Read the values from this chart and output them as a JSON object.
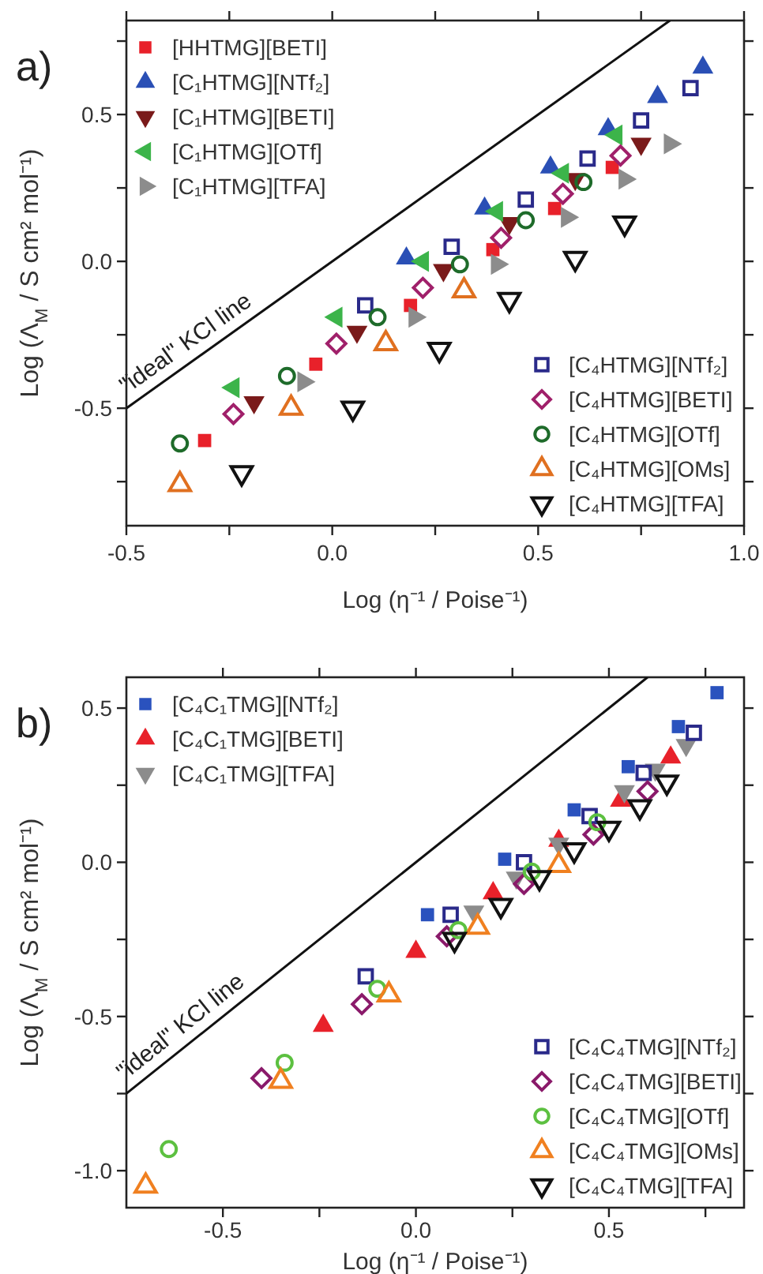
{
  "chart_data": [
    {
      "type": "scatter",
      "title": "a)",
      "xlabel": "Log (η⁻¹ / Poise⁻¹)",
      "ylabel": "Log (Λ$_{M}$ / S cm² mol⁻¹)",
      "xlim": [
        -0.5,
        1.0
      ],
      "ylim": [
        -0.9,
        0.82
      ],
      "xticks": [
        {
          "value": -0.5,
          "label": "-0.5"
        },
        {
          "value": -0.25,
          "label": null
        },
        {
          "value": 0,
          "label": "0.0"
        },
        {
          "value": 0.25,
          "label": null
        },
        {
          "value": 0.5,
          "label": "0.5"
        },
        {
          "value": 0.75,
          "label": null
        },
        {
          "value": 1.0,
          "label": "1.0"
        }
      ],
      "yticks": [
        {
          "value": -0.75,
          "label": null
        },
        {
          "value": -0.5,
          "label": "-0.5"
        },
        {
          "value": -0.25,
          "label": null
        },
        {
          "value": 0,
          "label": "0.0"
        },
        {
          "value": 0.25,
          "label": null
        },
        {
          "value": 0.5,
          "label": "0.5"
        },
        {
          "value": 0.75,
          "label": null
        }
      ],
      "legend": [
        "top left",
        "bottom right"
      ],
      "grid": false,
      "annotations": [
        {
          "text": "\"ideal\" KCl line",
          "x": -0.33,
          "y": -0.33
        }
      ],
      "series": [
        {
          "type": "line",
          "color": "#111111",
          "x": [
            -0.5,
            0.82
          ],
          "values": [
            -0.5,
            0.82
          ],
          "line_style": "solid"
        },
        {
          "name": "[HHTMG][BETI]",
          "color": "#e8212a",
          "marker": "square",
          "x": [
            -0.31,
            -0.04,
            0.19,
            0.39,
            0.54,
            0.68
          ],
          "values": [
            -0.61,
            -0.35,
            -0.15,
            0.04,
            0.18,
            0.32
          ]
        },
        {
          "name": "[C₁HTMG][NTf₂]",
          "color": "#2a4fb5",
          "marker": "triangle",
          "x": [
            0.18,
            0.37,
            0.53,
            0.67,
            0.79,
            0.9
          ],
          "values": [
            0.01,
            0.18,
            0.32,
            0.45,
            0.56,
            0.66
          ]
        },
        {
          "name": "[C₁HTMG][BETI]",
          "color": "#7a1a1a",
          "marker": "triangle-down",
          "x": [
            -0.19,
            0.06,
            0.27,
            0.43,
            0.59,
            0.75
          ],
          "values": [
            -0.48,
            -0.24,
            -0.03,
            0.13,
            0.28,
            0.4
          ]
        },
        {
          "name": "[C₁HTMG][OTf]",
          "color": "#3cb44a",
          "marker": "triangle-left",
          "x": [
            -0.24,
            0.01,
            0.22,
            0.4,
            0.56,
            0.69
          ],
          "values": [
            -0.43,
            -0.19,
            0.0,
            0.17,
            0.3,
            0.43
          ]
        },
        {
          "name": "[C₁HTMG][TFA]",
          "color": "#8c8c8c",
          "marker": "triangle-right",
          "x": [
            -0.07,
            0.2,
            0.4,
            0.57,
            0.71,
            0.82
          ],
          "values": [
            -0.41,
            -0.19,
            -0.01,
            0.15,
            0.28,
            0.4
          ]
        },
        {
          "name": "[C₄HTMG][NTf₂]",
          "color": "#2a2a8a",
          "marker": "square-open",
          "x": [
            0.08,
            0.29,
            0.47,
            0.62,
            0.75,
            0.87
          ],
          "values": [
            -0.15,
            0.05,
            0.21,
            0.35,
            0.48,
            0.59
          ]
        },
        {
          "name": "[C₄HTMG][BETI]",
          "color": "#a0206a",
          "marker": "diamond-open",
          "x": [
            -0.24,
            0.01,
            0.22,
            0.41,
            0.56,
            0.7
          ],
          "values": [
            -0.52,
            -0.28,
            -0.09,
            0.08,
            0.23,
            0.36
          ]
        },
        {
          "name": "[C₄HTMG][OTf]",
          "color": "#1e6b2a",
          "marker": "circle-open",
          "x": [
            -0.37,
            -0.11,
            0.11,
            0.31,
            0.47,
            0.61
          ],
          "values": [
            -0.62,
            -0.39,
            -0.19,
            -0.01,
            0.14,
            0.27
          ]
        },
        {
          "name": "[C₄HTMG][OMs]",
          "color": "#e07020",
          "marker": "triangle-open",
          "x": [
            -0.37,
            -0.1,
            0.13,
            0.32
          ],
          "values": [
            -0.76,
            -0.5,
            -0.28,
            -0.1
          ]
        },
        {
          "name": "[C₄HTMG][TFA]",
          "color": "#111111",
          "marker": "triangle-down-open",
          "x": [
            -0.22,
            0.05,
            0.26,
            0.43,
            0.59,
            0.71
          ],
          "values": [
            -0.72,
            -0.5,
            -0.3,
            -0.13,
            0.01,
            0.13
          ]
        }
      ]
    },
    {
      "type": "scatter",
      "title": "b)",
      "xlabel": "Log (η⁻¹ / Poise⁻¹)",
      "ylabel": "Log (Λ$_{M}$ / S cm² mol⁻¹)",
      "xlim": [
        -0.75,
        0.85
      ],
      "ylim": [
        -1.12,
        0.6
      ],
      "xticks": [
        {
          "value": -0.5,
          "label": "-0.5"
        },
        {
          "value": -0.25,
          "label": null
        },
        {
          "value": 0,
          "label": "0.0"
        },
        {
          "value": 0.25,
          "label": null
        },
        {
          "value": 0.5,
          "label": "0.5"
        },
        {
          "value": 0.75,
          "label": null
        }
      ],
      "yticks": [
        {
          "value": -1.0,
          "label": "-1.0"
        },
        {
          "value": -0.75,
          "label": null
        },
        {
          "value": -0.5,
          "label": "-0.5"
        },
        {
          "value": -0.25,
          "label": null
        },
        {
          "value": 0,
          "label": "0.0"
        },
        {
          "value": 0.25,
          "label": null
        },
        {
          "value": 0.5,
          "label": "0.5"
        }
      ],
      "legend": [
        "top left",
        "bottom right"
      ],
      "grid": false,
      "annotations": [
        {
          "text": "\"ideal\" KCl line",
          "x": -0.58,
          "y": -0.58
        }
      ],
      "series": [
        {
          "type": "line",
          "color": "#111111",
          "x": [
            -0.75,
            0.6
          ],
          "values": [
            -0.75,
            0.6
          ],
          "line_style": "solid"
        },
        {
          "name": "[C₄C₁TMG][NTf₂]",
          "color": "#2a52be",
          "marker": "square",
          "x": [
            0.03,
            0.23,
            0.41,
            0.55,
            0.68,
            0.78
          ],
          "values": [
            -0.17,
            0.01,
            0.17,
            0.31,
            0.44,
            0.55
          ]
        },
        {
          "name": "[C₄C₁TMG][BETI]",
          "color": "#e8212a",
          "marker": "triangle",
          "x": [
            -0.24,
            0.0,
            0.2,
            0.37,
            0.53,
            0.66
          ],
          "values": [
            -0.53,
            -0.29,
            -0.1,
            0.07,
            0.2,
            0.34
          ]
        },
        {
          "name": "[C₄C₁TMG][TFA]",
          "color": "#8c8c8c",
          "marker": "triangle-down",
          "x": [
            0.15,
            0.26,
            0.37,
            0.54,
            0.62,
            0.7
          ],
          "values": [
            -0.16,
            -0.05,
            0.06,
            0.23,
            0.3,
            0.38
          ]
        },
        {
          "name": "[C₄C₄TMG][NTf₂]",
          "color": "#2a2a8a",
          "marker": "square-open",
          "x": [
            -0.13,
            0.09,
            0.28,
            0.45,
            0.59,
            0.72
          ],
          "values": [
            -0.37,
            -0.17,
            0.0,
            0.15,
            0.29,
            0.42
          ]
        },
        {
          "name": "[C₄C₄TMG][BETI]",
          "color": "#8a1a6a",
          "marker": "diamond-open",
          "x": [
            -0.4,
            -0.14,
            0.08,
            0.28,
            0.46,
            0.6
          ],
          "values": [
            -0.7,
            -0.46,
            -0.24,
            -0.07,
            0.09,
            0.23
          ]
        },
        {
          "name": "[C₄C₄TMG][OTf]",
          "color": "#5cc040",
          "marker": "circle-open",
          "x": [
            -0.64,
            -0.34,
            -0.1,
            0.11,
            0.3,
            0.47
          ],
          "values": [
            -0.93,
            -0.65,
            -0.41,
            -0.22,
            -0.03,
            0.13
          ]
        },
        {
          "name": "[C₄C₄TMG][OMs]",
          "color": "#f08020",
          "marker": "triangle-open",
          "x": [
            -0.7,
            -0.35,
            -0.07,
            0.16,
            0.37
          ],
          "values": [
            -1.05,
            -0.71,
            -0.43,
            -0.21,
            -0.01
          ]
        },
        {
          "name": "[C₄C₄TMG][TFA]",
          "color": "#111111",
          "marker": "triangle-down-open",
          "x": [
            0.1,
            0.22,
            0.32,
            0.41,
            0.5,
            0.58,
            0.65
          ],
          "values": [
            -0.25,
            -0.14,
            -0.05,
            0.04,
            0.11,
            0.18,
            0.26
          ]
        }
      ]
    }
  ]
}
